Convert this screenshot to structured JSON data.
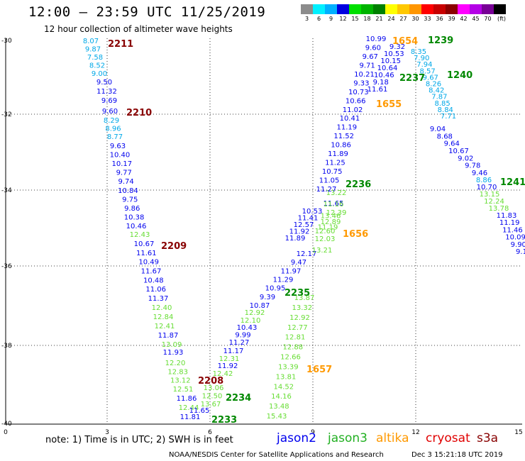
{
  "header": {
    "title": "12:00 – 23:59 UTC 11/25/2019",
    "subtitle": "12 hour collection of altimeter wave heights"
  },
  "colorbar": {
    "unit": "(ft)",
    "swatches": [
      {
        "label": "3",
        "color": "#8c8c8c"
      },
      {
        "label": "6",
        "color": "#00f0ff"
      },
      {
        "label": "9",
        "color": "#00b0ff"
      },
      {
        "label": "12",
        "color": "#0000e0"
      },
      {
        "label": "15",
        "color": "#00e000"
      },
      {
        "label": "18",
        "color": "#00b400"
      },
      {
        "label": "21",
        "color": "#008000"
      },
      {
        "label": "24",
        "color": "#ffff00"
      },
      {
        "label": "27",
        "color": "#ffc800"
      },
      {
        "label": "30",
        "color": "#ff9600"
      },
      {
        "label": "33",
        "color": "#ff0000"
      },
      {
        "label": "36",
        "color": "#c80000"
      },
      {
        "label": "39",
        "color": "#8c0000"
      },
      {
        "label": "42",
        "color": "#ff00ff"
      },
      {
        "label": "45",
        "color": "#b400e6"
      },
      {
        "label": "70",
        "color": "#780096"
      },
      {
        "label": "",
        "color": "#000000"
      }
    ]
  },
  "axes": {
    "y_ticks": [
      "-30",
      "-32",
      "-34",
      "-36",
      "-38",
      "-40"
    ],
    "x_ticks": [
      "0",
      "3",
      "6",
      "9",
      "12",
      "15"
    ]
  },
  "colors": {
    "jason2": "#0000ee",
    "jason3": "#22b022",
    "altika": "#ff9900",
    "cryosat": "#e00000",
    "s3a": "#880000",
    "cyan": "#00a8e8",
    "green_light": "#66dd33",
    "green_dark": "#008800",
    "maroon": "#880000"
  },
  "tracks": [
    {
      "tone": "cyan",
      "values": [
        "8.07",
        "9.87",
        "7.58",
        "8.52",
        "9.00"
      ]
    },
    {
      "tone": "jason2",
      "values": [
        "9.50",
        "11.32",
        "9.69"
      ]
    },
    {
      "tone": "jason2",
      "values": [
        "9.60"
      ]
    },
    {
      "tone": "cyan",
      "values": [
        "8.29",
        "8.96",
        "8.77"
      ]
    },
    {
      "tone": "jason2",
      "values": [
        "9.63",
        "10.40",
        "10.17",
        "9.77",
        "9.74",
        "10.84",
        "9.75",
        "9.86",
        "10.38",
        "10.46"
      ]
    },
    {
      "tone": "green_light",
      "values": [
        "12.43"
      ]
    },
    {
      "tone": "jason2",
      "values": [
        "10.67",
        "11.61",
        "10.49",
        "11.67",
        "10.48",
        "11.06",
        "11.37"
      ]
    },
    {
      "tone": "green_light",
      "values": [
        "12.40",
        "12.84",
        "12.41"
      ]
    },
    {
      "tone": "jason2",
      "values": [
        "11.87"
      ]
    },
    {
      "tone": "green_light",
      "values": [
        "13.09"
      ]
    },
    {
      "tone": "jason2",
      "values": [
        "11.93"
      ]
    },
    {
      "tone": "green_light",
      "values": [
        "12.20",
        "12.83",
        "13.12",
        "12.51"
      ]
    },
    {
      "tone": "jason2",
      "values": [
        "11.86"
      ]
    },
    {
      "tone": "green_light",
      "values": [
        "12.44"
      ]
    },
    {
      "tone": "jason2",
      "values": [
        "11.65",
        "11.81"
      ]
    },
    {
      "tone": "green_light",
      "values": [
        "13.06",
        "12.50",
        "13.67"
      ]
    },
    {
      "tone": "jason2",
      "values": [
        "11.17",
        "11.92"
      ]
    },
    {
      "tone": "green_light",
      "values": [
        "12.31",
        "12.42"
      ]
    },
    {
      "tone": "jason2",
      "values": [
        "11.27",
        "9.99",
        "10.43"
      ]
    },
    {
      "tone": "green_light",
      "values": [
        "12.10",
        "12.92"
      ]
    },
    {
      "tone": "jason2",
      "values": [
        "10.87",
        "9.39",
        "10.95",
        "11.29",
        "11.97",
        "9.47",
        "12.17"
      ]
    },
    {
      "tone": "jason2",
      "values": [
        "11.89",
        "11.92",
        "12.57",
        "11.41",
        "10.53"
      ]
    },
    {
      "tone": "green_light",
      "values": [
        "12.60",
        "12.89",
        "12.39"
      ]
    },
    {
      "tone": "jason2",
      "values": [
        "11.65"
      ]
    },
    {
      "tone": "green_light",
      "values": [
        "13.21",
        "12.03",
        "11.19",
        "13.46",
        "11.16",
        "13.22"
      ]
    },
    {
      "tone": "green_light",
      "values": [
        "13.87",
        "13.32",
        "12.92",
        "12.77",
        "12.81",
        "12.88",
        "12.66",
        "13.39",
        "13.81",
        "14.52",
        "14.16",
        "13.48",
        "15.43"
      ]
    },
    {
      "tone": "jason2",
      "values": [
        "11.27",
        "11.05",
        "10.75",
        "11.25",
        "11.89",
        "10.86",
        "11.52",
        "11.19",
        "10.41",
        "11.02",
        "10.66",
        "10.73",
        "9.33",
        "10.21",
        "9.71",
        "9.67",
        "9.60",
        "10.99"
      ]
    },
    {
      "tone": "jason2",
      "values": [
        "11.61",
        "9.18",
        "10.46",
        "10.64",
        "10.15",
        "10.53",
        "9.32"
      ]
    },
    {
      "tone": "cyan",
      "values": [
        "8.35",
        "7.90",
        "7.94",
        "8.57",
        "9.67",
        "8.26",
        "8.42",
        "7.87",
        "8.85",
        "8.84",
        "7.71"
      ]
    },
    {
      "tone": "jason2",
      "values": [
        "9.04",
        "8.68",
        "9.64",
        "10.67",
        "9.02",
        "9.78",
        "9.46"
      ]
    },
    {
      "tone": "cyan",
      "values": [
        "8.86"
      ]
    },
    {
      "tone": "jason2",
      "values": [
        "10.70"
      ]
    },
    {
      "tone": "green_light",
      "values": [
        "13.15",
        "12.24",
        "13.78"
      ]
    },
    {
      "tone": "jason2",
      "values": [
        "11.83",
        "11.19",
        "11.46",
        "10.09",
        "9.90",
        "9.1"
      ]
    }
  ],
  "pass_labels": [
    {
      "text": "2211",
      "tone": "maroon"
    },
    {
      "text": "2210",
      "tone": "maroon"
    },
    {
      "text": "2209",
      "tone": "maroon"
    },
    {
      "text": "2208",
      "tone": "maroon"
    },
    {
      "text": "2233",
      "tone": "green_dark"
    },
    {
      "text": "2234",
      "tone": "green_dark"
    },
    {
      "text": "2235",
      "tone": "green_dark"
    },
    {
      "text": "2236",
      "tone": "green_dark"
    },
    {
      "text": "2237",
      "tone": "green_dark"
    },
    {
      "text": "1239",
      "tone": "green_dark"
    },
    {
      "text": "1240",
      "tone": "green_dark"
    },
    {
      "text": "1241",
      "tone": "green_dark"
    },
    {
      "text": "1654",
      "tone": "altika"
    },
    {
      "text": "1655",
      "tone": "altika"
    },
    {
      "text": "1656",
      "tone": "altika"
    },
    {
      "text": "1657",
      "tone": "altika"
    }
  ],
  "legend": {
    "note": "note:  1) Time is in UTC;  2) SWH is in feet",
    "satellites": [
      {
        "name": "jason2",
        "tone": "jason2"
      },
      {
        "name": "jason3",
        "tone": "jason3"
      },
      {
        "name": "altika",
        "tone": "altika"
      },
      {
        "name": "cryosat",
        "tone": "cryosat"
      },
      {
        "name": "s3a",
        "tone": "s3a"
      }
    ]
  },
  "footer": {
    "credit": "NOAA/NESDIS Center for Satellite Applications and Research",
    "stamp": "Dec  3 15:21:18 UTC 2019"
  }
}
